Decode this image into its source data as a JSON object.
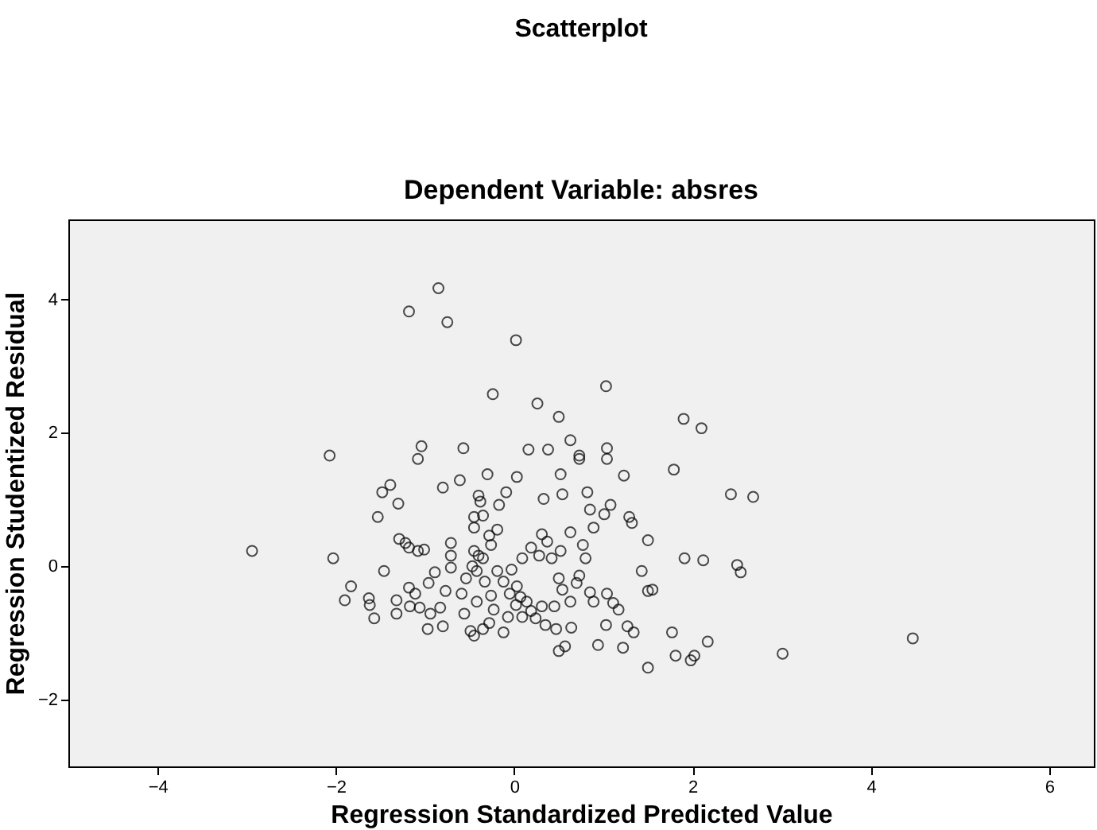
{
  "chart_data": {
    "type": "scatter",
    "title": "Scatterplot",
    "subtitle": "Dependent Variable: absres",
    "xlabel": "Regression Standardized Predicted Value",
    "ylabel": "Regression Studentized Residual",
    "marker": "circle",
    "grid": false,
    "xlim": [
      -5.0,
      6.5
    ],
    "ylim": [
      -3.0,
      5.2
    ],
    "xticks": [
      -4,
      -2,
      0,
      2,
      4,
      6
    ],
    "yticks": [
      -2,
      0,
      2,
      4
    ],
    "series": [
      {
        "color": "#000000",
        "x": [
          -0.85,
          -1.18,
          -0.75,
          0.02,
          -0.24,
          1.03,
          0.26,
          0.5,
          1.9,
          2.1,
          -2.07,
          -1.04,
          -0.57,
          0.16,
          0.63,
          0.38,
          1.04,
          1.04,
          0.73,
          0.73,
          -1.08,
          1.79,
          -0.3,
          0.52,
          1.23,
          0.03,
          -1.39,
          -1.48,
          -0.8,
          -0.61,
          -0.4,
          -0.38,
          -0.17,
          -0.09,
          0.54,
          0.33,
          0.82,
          1.08,
          0.85,
          1.01,
          1.29,
          1.32,
          2.43,
          2.68,
          -1.53,
          -1.3,
          -1.29,
          -1.18,
          -1.22,
          -1.01,
          -1.08,
          -2.94,
          -2.03,
          -1.46,
          -0.71,
          -0.71,
          -0.71,
          1.5,
          1.91,
          2.12,
          2.5,
          2.54,
          -1.83,
          -1.9,
          -1.63,
          -1.62,
          -1.57,
          -1.32,
          -1.32,
          -1.18,
          -1.17,
          -1.11,
          -1.06,
          -0.94,
          -0.83,
          -0.8,
          -0.96,
          -0.77,
          -0.59,
          -0.54,
          -0.47,
          -0.42,
          -0.35,
          -0.26,
          -0.28,
          -0.19,
          -0.45,
          -0.4,
          -0.45,
          -0.45,
          -0.35,
          -0.33,
          -0.26,
          -0.42,
          -0.23,
          -0.56,
          -0.49,
          -0.45,
          -0.35,
          -0.28,
          -0.12,
          -0.07,
          -0.05,
          0.02,
          0.07,
          0.14,
          0.19,
          0.09,
          0.24,
          0.31,
          0.35,
          0.03,
          0.09,
          0.19,
          0.28,
          0.31,
          0.37,
          0.42,
          0.52,
          0.5,
          0.54,
          0.45,
          0.47,
          0.5,
          0.57,
          0.64,
          0.63,
          0.7,
          0.73,
          0.8,
          0.85,
          0.89,
          0.94,
          1.04,
          1.11,
          1.17,
          1.22,
          1.27,
          1.34,
          1.5,
          1.55,
          1.43,
          1.5,
          1.77,
          1.81,
          1.98,
          2.02,
          2.17,
          3.01,
          4.47,
          0.77,
          0.89,
          0.63,
          1.03,
          -0.97,
          -0.03,
          -0.19,
          -0.12,
          -0.89
        ],
        "values": [
          4.17,
          3.82,
          3.66,
          3.39,
          2.58,
          2.7,
          2.44,
          2.24,
          2.21,
          2.07,
          1.66,
          1.8,
          1.77,
          1.75,
          1.89,
          1.75,
          1.77,
          1.61,
          1.61,
          1.66,
          1.61,
          1.45,
          1.38,
          1.38,
          1.36,
          1.34,
          1.22,
          1.11,
          1.18,
          1.29,
          1.06,
          0.97,
          0.92,
          1.11,
          1.08,
          1.01,
          1.11,
          0.92,
          0.85,
          0.78,
          0.74,
          0.65,
          1.08,
          1.04,
          0.74,
          0.94,
          0.41,
          0.28,
          0.35,
          0.25,
          0.23,
          0.23,
          0.12,
          -0.07,
          0.35,
          0.16,
          -0.02,
          0.39,
          0.12,
          0.09,
          0.02,
          -0.09,
          -0.3,
          -0.51,
          -0.48,
          -0.58,
          -0.78,
          -0.51,
          -0.71,
          -0.32,
          -0.6,
          -0.41,
          -0.62,
          -0.71,
          -0.62,
          -0.9,
          -0.25,
          -0.37,
          -0.41,
          -0.18,
          0.0,
          -0.07,
          0.12,
          0.32,
          0.46,
          0.55,
          0.23,
          0.16,
          0.58,
          0.74,
          0.76,
          -0.23,
          -0.44,
          -0.53,
          -0.65,
          -0.71,
          -0.97,
          -1.04,
          -0.94,
          -0.85,
          -0.99,
          -0.76,
          -0.41,
          -0.58,
          -0.46,
          -0.53,
          -0.67,
          -0.76,
          -0.78,
          -0.6,
          -0.88,
          -0.3,
          0.12,
          0.28,
          0.16,
          0.48,
          0.37,
          0.12,
          0.23,
          -0.18,
          -0.35,
          -0.6,
          -0.94,
          -1.27,
          -1.2,
          -0.92,
          -0.53,
          -0.25,
          -0.14,
          0.12,
          -0.39,
          -0.53,
          -1.18,
          -0.41,
          -0.55,
          -0.65,
          -1.22,
          -0.9,
          -0.99,
          -0.37,
          -0.35,
          -0.07,
          -1.52,
          -0.99,
          -1.34,
          -1.41,
          -1.34,
          -1.13,
          -1.31,
          -1.08,
          0.32,
          0.58,
          0.51,
          -0.88,
          -0.94,
          -0.05,
          -0.07,
          -0.23,
          -0.09
        ]
      }
    ]
  }
}
